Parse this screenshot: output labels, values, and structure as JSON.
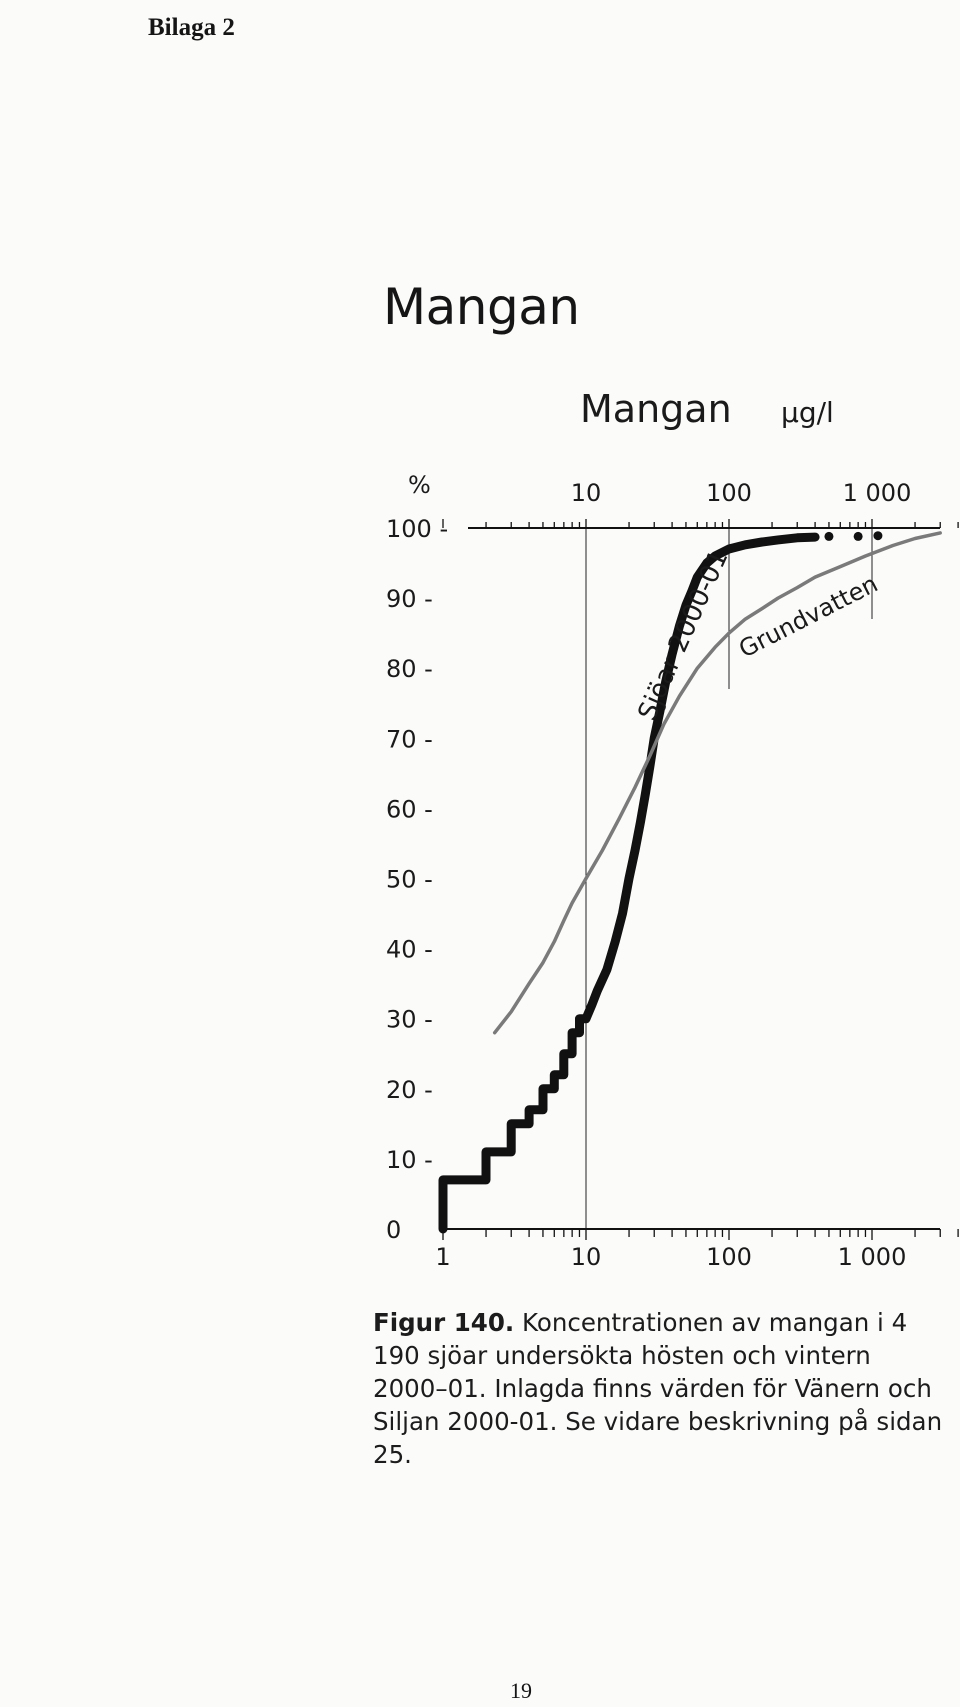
{
  "page": {
    "header": "Bilaga 2",
    "title": "Mangan",
    "page_number": "19"
  },
  "caption": {
    "label": "Figur 140.",
    "text": "Koncentrationen av mangan i 4 190 sjöar undersökta hösten och vintern 2000–01. Inlagda finns värden för Vänern och Siljan 2000-01. Se vidare beskrivning på sidan 25."
  },
  "chart_data": {
    "type": "line",
    "title": "Mangan",
    "title_unit": "μg/l",
    "ylabel": "%",
    "x_scale": "log",
    "xlim": [
      1,
      4000
    ],
    "ylim": [
      0,
      100
    ],
    "x_ticks": [
      {
        "value": 1,
        "label": "1"
      },
      {
        "value": 10,
        "label": "10"
      },
      {
        "value": 100,
        "label": "100"
      },
      {
        "value": 1000,
        "label": "1 000"
      }
    ],
    "y_ticks": [
      {
        "value": 0,
        "label": "0"
      },
      {
        "value": 10,
        "label": "10 -"
      },
      {
        "value": 20,
        "label": "20 -"
      },
      {
        "value": 30,
        "label": "30 -"
      },
      {
        "value": 40,
        "label": "40 -"
      },
      {
        "value": 50,
        "label": "50 -"
      },
      {
        "value": 60,
        "label": "60 -"
      },
      {
        "value": 70,
        "label": "70 -"
      },
      {
        "value": 80,
        "label": "80 -"
      },
      {
        "value": 90,
        "label": "90 -"
      },
      {
        "value": 100,
        "label": "100 -"
      }
    ],
    "series": [
      {
        "name": "Sjöar 2000-01",
        "color": "#111111",
        "style": "thick-step",
        "points": [
          [
            1,
            0
          ],
          [
            1,
            7
          ],
          [
            2,
            7
          ],
          [
            2,
            11
          ],
          [
            3,
            11
          ],
          [
            3,
            15
          ],
          [
            4,
            15
          ],
          [
            4,
            17
          ],
          [
            5,
            17
          ],
          [
            5,
            20
          ],
          [
            6,
            20
          ],
          [
            6,
            22
          ],
          [
            7,
            22
          ],
          [
            7,
            25
          ],
          [
            8,
            25
          ],
          [
            8,
            28
          ],
          [
            9,
            28
          ],
          [
            9,
            30
          ],
          [
            10,
            30
          ],
          [
            11,
            32
          ],
          [
            12,
            34
          ],
          [
            14,
            37
          ],
          [
            16,
            41
          ],
          [
            18,
            45
          ],
          [
            20,
            50
          ],
          [
            22,
            54
          ],
          [
            24,
            58
          ],
          [
            26,
            62
          ],
          [
            28,
            66
          ],
          [
            30,
            70
          ],
          [
            33,
            74
          ],
          [
            36,
            78
          ],
          [
            40,
            82
          ],
          [
            45,
            86
          ],
          [
            50,
            89
          ],
          [
            55,
            91
          ],
          [
            60,
            93
          ],
          [
            70,
            95
          ],
          [
            80,
            96
          ],
          [
            100,
            97
          ],
          [
            130,
            97.6
          ],
          [
            170,
            98
          ],
          [
            220,
            98.3
          ],
          [
            300,
            98.6
          ],
          [
            400,
            98.7
          ]
        ],
        "outliers": [
          [
            500,
            98.8
          ],
          [
            800,
            98.8
          ],
          [
            1100,
            98.9
          ]
        ]
      },
      {
        "name": "Grundvatten",
        "color": "#7a7a7a",
        "style": "thin-line",
        "points": [
          [
            2.3,
            28
          ],
          [
            3,
            31
          ],
          [
            4,
            35
          ],
          [
            5,
            38
          ],
          [
            6,
            41
          ],
          [
            7,
            44
          ],
          [
            8,
            46.5
          ],
          [
            10,
            50
          ],
          [
            13,
            54
          ],
          [
            17,
            58.5
          ],
          [
            22,
            63
          ],
          [
            28,
            67.5
          ],
          [
            35,
            72
          ],
          [
            45,
            76
          ],
          [
            60,
            80
          ],
          [
            80,
            83
          ],
          [
            100,
            85
          ],
          [
            130,
            87
          ],
          [
            170,
            88.5
          ],
          [
            220,
            90
          ],
          [
            300,
            91.5
          ],
          [
            400,
            93
          ],
          [
            600,
            94.5
          ],
          [
            900,
            96
          ],
          [
            1400,
            97.5
          ],
          [
            2000,
            98.5
          ],
          [
            3000,
            99.3
          ]
        ]
      }
    ],
    "reference_lines_x": [
      10,
      100,
      1000
    ]
  }
}
